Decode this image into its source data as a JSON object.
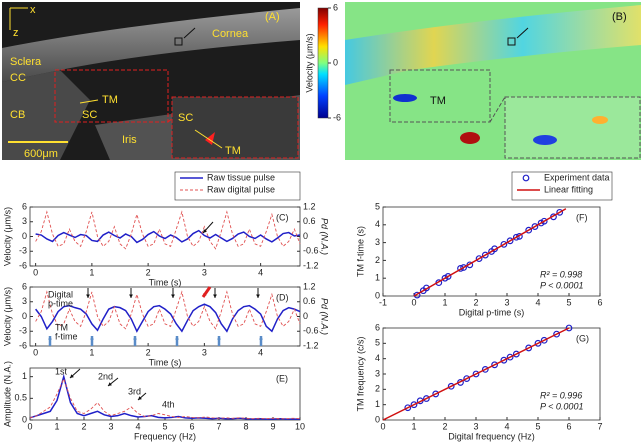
{
  "panels": {
    "A": {
      "label": "(A)",
      "cornea": "Cornea",
      "sclera": "Sclera",
      "cc": "CC",
      "cb": "CB",
      "sc": "SC",
      "tm": "TM",
      "iris": "Iris",
      "scale": "600μm",
      "axis_x": "x",
      "axis_z": "z",
      "inset_sc": "SC",
      "inset_tm": "TM"
    },
    "B": {
      "label": "(B)",
      "tm": "TM",
      "colorbar": {
        "label": "Velocity (μm/s)",
        "lim": [
          -6,
          6
        ],
        "ticks": [
          6,
          0,
          -6
        ]
      }
    }
  },
  "chart_data": [
    {
      "type": "line",
      "panel_label": "(C)",
      "xlabel": "Time (s)",
      "ylabel": "Velocity (μm/s)",
      "y2label": "Pd (N.A.)",
      "legend": "top-right",
      "x": [
        0,
        0.1,
        0.2,
        0.3,
        0.4,
        0.5,
        0.6,
        0.7,
        0.8,
        0.9,
        1,
        1.1,
        1.2,
        1.3,
        1.4,
        1.5,
        1.6,
        1.7,
        1.8,
        1.9,
        2,
        2.1,
        2.2,
        2.3,
        2.4,
        2.5,
        2.6,
        2.7,
        2.8,
        2.9,
        3,
        3.1,
        3.2,
        3.3,
        3.4,
        3.5,
        3.6,
        3.7,
        3.8,
        3.9,
        4,
        4.1,
        4.2,
        4.3,
        4.4,
        4.5,
        4.6,
        4.7
      ],
      "xlim": [
        -0.1,
        4.7
      ],
      "xticks": [
        0,
        1,
        2,
        3,
        4
      ],
      "ylim": [
        -6,
        6
      ],
      "yticks": [
        -6,
        -3,
        0,
        3,
        6
      ],
      "y2lim": [
        -1.2,
        1.2
      ],
      "y2ticks": [
        -1.2,
        -0.6,
        0,
        0.6,
        1.2
      ],
      "series": [
        {
          "name": "Raw tissue pulse",
          "color": "#2020c8",
          "style": "solid",
          "values": [
            0.5,
            0.3,
            -0.5,
            -1.0,
            0.2,
            0.8,
            0.3,
            -0.2,
            0.4,
            0.2,
            -0.8,
            -1.0,
            0.3,
            0.9,
            0.2,
            -0.3,
            0.5,
            0.0,
            -1.2,
            -0.6,
            0.4,
            1.0,
            0.1,
            -0.4,
            0.3,
            -0.2,
            -1.1,
            -0.5,
            0.6,
            1.2,
            0.2,
            -0.3,
            0.4,
            -0.3,
            -1.0,
            -0.4,
            0.5,
            0.9,
            0.0,
            -0.4,
            0.3,
            -0.5,
            -1.1,
            -0.3,
            0.6,
            0.8,
            0.1,
            0.3
          ]
        },
        {
          "name": "Raw digital pulse",
          "color": "#e05050",
          "style": "dashed",
          "axis": "y2",
          "values": [
            -0.2,
            0.2,
            1.0,
            0.1,
            -0.4,
            -0.3,
            0.3,
            -0.2,
            -0.4,
            0.2,
            1.0,
            0.0,
            -0.4,
            -0.2,
            0.4,
            -0.3,
            -0.5,
            0.1,
            0.9,
            0.1,
            -0.4,
            -0.3,
            0.3,
            -0.3,
            -0.4,
            0.3,
            1.0,
            0.0,
            -0.4,
            -0.2,
            0.4,
            -0.2,
            -0.5,
            0.2,
            1.0,
            0.1,
            -0.4,
            -0.3,
            0.3,
            -0.3,
            -0.4,
            0.2,
            0.9,
            0.0,
            -0.4,
            -0.2,
            0.3,
            -0.3
          ]
        }
      ],
      "annotations": []
    },
    {
      "type": "line",
      "panel_label": "(D)",
      "xlabel": "Time (s)",
      "ylabel": "Velocity (μm/s)",
      "y2label": "Pd (N.A.)",
      "x": [
        0,
        0.1,
        0.2,
        0.3,
        0.4,
        0.5,
        0.6,
        0.7,
        0.8,
        0.9,
        1,
        1.1,
        1.2,
        1.3,
        1.4,
        1.5,
        1.6,
        1.7,
        1.8,
        1.9,
        2,
        2.1,
        2.2,
        2.3,
        2.4,
        2.5,
        2.6,
        2.7,
        2.8,
        2.9,
        3,
        3.1,
        3.2,
        3.3,
        3.4,
        3.5,
        3.6,
        3.7,
        3.8,
        3.9,
        4,
        4.1,
        4.2,
        4.3,
        4.4,
        4.5,
        4.6,
        4.7
      ],
      "xlim": [
        -0.1,
        4.7
      ],
      "xticks": [
        0,
        1,
        2,
        3,
        4
      ],
      "ylim": [
        -6,
        6
      ],
      "yticks": [
        -6,
        -3,
        0,
        3,
        6
      ],
      "y2lim": [
        -1.2,
        1.2
      ],
      "y2ticks": [
        -1.2,
        -0.6,
        0,
        0.6,
        1.2
      ],
      "series": [
        {
          "color": "#2020c8",
          "style": "solid",
          "values": [
            1.5,
            0.0,
            -2.5,
            -1.0,
            1.0,
            2.0,
            2.2,
            1.8,
            1.5,
            0.5,
            -1.5,
            -2.8,
            -0.5,
            1.5,
            2.0,
            1.8,
            1.2,
            -0.5,
            -3.0,
            -1.0,
            1.0,
            2.0,
            2.2,
            1.5,
            0.5,
            -1.5,
            -3.0,
            -0.8,
            1.2,
            2.0,
            2.5,
            2.0,
            0.8,
            -1.5,
            -3.0,
            -0.5,
            1.2,
            2.0,
            2.2,
            1.5,
            0.5,
            -2.0,
            -3.0,
            -0.5,
            1.2,
            1.8,
            1.5,
            1.0
          ]
        },
        {
          "color": "#e05050",
          "style": "dashed",
          "axis": "y2",
          "values": [
            -0.2,
            0.2,
            1.0,
            0.1,
            -0.4,
            -0.3,
            0.3,
            -0.2,
            -0.4,
            0.2,
            1.0,
            0.0,
            -0.4,
            -0.2,
            0.4,
            -0.3,
            -0.5,
            0.1,
            0.9,
            0.1,
            -0.4,
            -0.3,
            0.3,
            -0.3,
            -0.4,
            0.3,
            1.0,
            0.0,
            -0.4,
            -0.2,
            0.4,
            -0.2,
            -0.5,
            0.2,
            1.0,
            0.1,
            -0.4,
            -0.3,
            0.3,
            -0.3,
            -0.4,
            0.2,
            0.9,
            0.0,
            -0.4,
            -0.2,
            0.3,
            -0.3
          ]
        }
      ],
      "annotations": [
        "Digital",
        "p-time",
        "TM",
        "f-time"
      ]
    },
    {
      "type": "line",
      "panel_label": "(E)",
      "xlabel": "Frequency (Hz)",
      "ylabel": "Amplitude (N.A.)",
      "x": [
        0,
        0.25,
        0.5,
        0.75,
        1,
        1.25,
        1.5,
        1.75,
        2,
        2.25,
        2.5,
        2.75,
        3,
        3.25,
        3.5,
        3.75,
        4,
        4.25,
        4.5,
        4.75,
        5,
        5.25,
        5.5,
        5.75,
        6,
        6.25,
        6.5,
        6.75,
        7,
        7.25,
        7.5,
        7.75,
        8,
        8.25,
        8.5,
        8.75,
        9,
        9.25,
        9.5,
        9.75,
        10
      ],
      "xlim": [
        0,
        10
      ],
      "xticks": [
        0,
        1,
        2,
        3,
        4,
        5,
        6,
        7,
        8,
        9,
        10
      ],
      "ylim": [
        0,
        1.2
      ],
      "yticks": [
        0,
        0.5,
        1
      ],
      "series": [
        {
          "color": "#2020c8",
          "style": "solid",
          "values": [
            0.05,
            0.1,
            0.15,
            0.2,
            0.45,
            1.0,
            0.4,
            0.15,
            0.1,
            0.15,
            0.2,
            0.12,
            0.08,
            0.1,
            0.15,
            0.1,
            0.07,
            0.08,
            0.1,
            0.06,
            0.05,
            0.06,
            0.08,
            0.05,
            0.04,
            0.05,
            0.04,
            0.03,
            0.04,
            0.03,
            0.03,
            0.04,
            0.03,
            0.02,
            0.03,
            0.02,
            0.02,
            0.03,
            0.02,
            0.02,
            0.02
          ]
        },
        {
          "color": "#e05050",
          "style": "dashed",
          "values": [
            0.05,
            0.1,
            0.2,
            0.3,
            0.6,
            0.95,
            0.5,
            0.2,
            0.15,
            0.25,
            0.4,
            0.2,
            0.1,
            0.15,
            0.2,
            0.3,
            0.15,
            0.08,
            0.1,
            0.15,
            0.12,
            0.08,
            0.06,
            0.08,
            0.06,
            0.05,
            0.07,
            0.05,
            0.04,
            0.05,
            0.04,
            0.05,
            0.04,
            0.03,
            0.04,
            0.03,
            0.04,
            0.03,
            0.03,
            0.04,
            0.03
          ]
        }
      ],
      "annotations": [
        "1st",
        "2nd",
        "3rd",
        "4th"
      ]
    },
    {
      "type": "scatter",
      "panel_label": "(F)",
      "xlabel": "Digital p-time (s)",
      "ylabel": "TM f-time (s)",
      "legend": "top-right",
      "xlim": [
        -1,
        6
      ],
      "xticks": [
        -1,
        0,
        1,
        2,
        3,
        4,
        5,
        6
      ],
      "ylim": [
        0,
        5
      ],
      "yticks": [
        0,
        1,
        2,
        3,
        4,
        5
      ],
      "series": [
        {
          "name": "Experiment data",
          "color": "#2020c8",
          "style": "markers",
          "x": [
            0.1,
            0.3,
            0.4,
            0.8,
            1.0,
            1.1,
            1.5,
            1.6,
            1.8,
            2.1,
            2.3,
            2.5,
            2.6,
            2.9,
            3.1,
            3.3,
            3.4,
            3.7,
            3.9,
            4.1,
            4.2,
            4.5,
            4.7
          ],
          "values": [
            0.05,
            0.3,
            0.45,
            0.75,
            1.0,
            1.1,
            1.55,
            1.6,
            1.75,
            2.1,
            2.3,
            2.5,
            2.65,
            2.9,
            3.1,
            3.3,
            3.35,
            3.7,
            3.9,
            4.1,
            4.2,
            4.45,
            4.7
          ]
        },
        {
          "name": "Linear fitting",
          "color": "#d01010",
          "style": "line",
          "x": [
            0,
            4.9
          ],
          "values": [
            0,
            4.9
          ]
        }
      ],
      "annotations": [
        "R² = 0.998",
        "P < 0.0001"
      ]
    },
    {
      "type": "scatter",
      "panel_label": "(G)",
      "xlabel": "Digital frequency (Hz)",
      "ylabel": "TM frequency (c/s)",
      "xlim": [
        0,
        7
      ],
      "xticks": [
        0,
        1,
        2,
        3,
        4,
        5,
        6,
        7
      ],
      "ylim": [
        0,
        6
      ],
      "yticks": [
        0,
        1,
        2,
        3,
        4,
        5,
        6
      ],
      "series": [
        {
          "color": "#2020c8",
          "style": "markers",
          "x": [
            0.8,
            1.0,
            1.2,
            1.4,
            1.7,
            2.2,
            2.5,
            2.7,
            3.0,
            3.3,
            3.6,
            3.9,
            4.1,
            4.3,
            4.7,
            5.0,
            5.2,
            5.6,
            6.0
          ],
          "values": [
            0.8,
            1.0,
            1.25,
            1.4,
            1.7,
            2.2,
            2.45,
            2.7,
            3.0,
            3.3,
            3.6,
            3.9,
            4.1,
            4.3,
            4.7,
            5.0,
            5.2,
            5.6,
            6.0
          ]
        },
        {
          "color": "#d01010",
          "style": "line",
          "x": [
            0,
            6
          ],
          "values": [
            0,
            6
          ]
        }
      ],
      "annotations": [
        "R² = 0.996",
        "P < 0.0001"
      ]
    }
  ]
}
